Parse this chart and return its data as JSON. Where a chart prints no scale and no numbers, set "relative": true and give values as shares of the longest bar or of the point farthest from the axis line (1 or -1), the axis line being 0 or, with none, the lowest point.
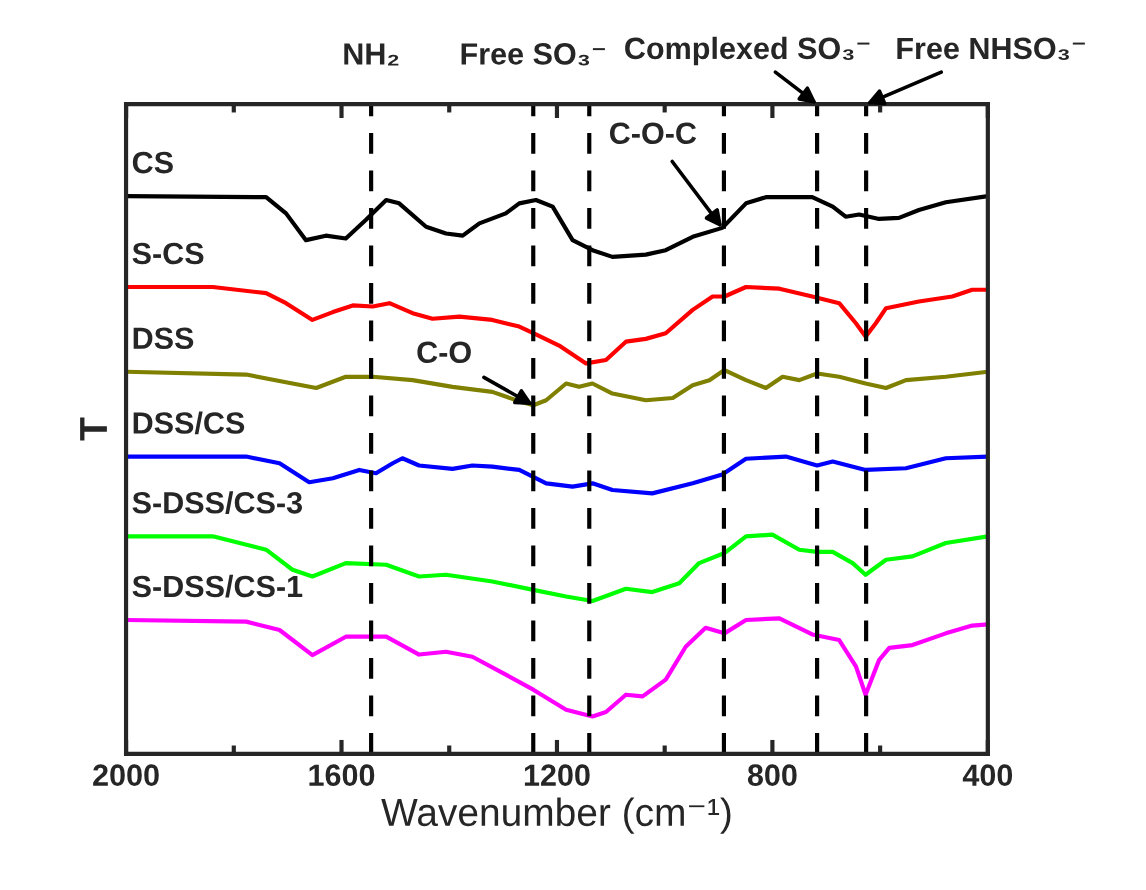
{
  "chart_data": {
    "type": "line",
    "relative": true,
    "xlabel": "Wavenumber (cm⁻¹)",
    "ylabel": "T",
    "xlim": [
      2000,
      400
    ],
    "xticks": [
      2000,
      1600,
      1200,
      800,
      400
    ],
    "grid": false,
    "line_style": "solid",
    "marker": "none",
    "series": [
      {
        "name": "CS",
        "color": "#000000",
        "x": [
          2000,
          1740,
          1703,
          1666,
          1629,
          1592,
          1555,
          1517,
          1493,
          1443,
          1406,
          1375,
          1344,
          1295,
          1270,
          1239,
          1208,
          1171,
          1134,
          1097,
          1035,
          998,
          948,
          893,
          849,
          812,
          726,
          688,
          664,
          639,
          602,
          565,
          528,
          478,
          400
        ],
        "values": [
          1.0,
          0.998,
          0.969,
          0.921,
          0.929,
          0.924,
          0.957,
          0.993,
          0.987,
          0.945,
          0.933,
          0.929,
          0.951,
          0.969,
          0.987,
          0.993,
          0.981,
          0.921,
          0.903,
          0.891,
          0.895,
          0.903,
          0.927,
          0.943,
          0.987,
          0.998,
          0.998,
          0.981,
          0.963,
          0.967,
          0.959,
          0.961,
          0.975,
          0.989,
          1.0
        ]
      },
      {
        "name": "S-CS",
        "color": "#ff0000",
        "x": [
          2000,
          1839,
          1740,
          1703,
          1654,
          1616,
          1579,
          1542,
          1511,
          1468,
          1431,
          1381,
          1320,
          1270,
          1239,
          1196,
          1146,
          1109,
          1072,
          1035,
          998,
          948,
          911,
          889,
          849,
          787,
          726,
          676,
          645,
          627,
          608,
          589,
          528,
          466,
          429,
          400
        ],
        "values": [
          0.837,
          0.837,
          0.826,
          0.808,
          0.778,
          0.792,
          0.804,
          0.802,
          0.808,
          0.79,
          0.78,
          0.784,
          0.778,
          0.766,
          0.752,
          0.732,
          0.7,
          0.706,
          0.739,
          0.744,
          0.754,
          0.796,
          0.82,
          0.82,
          0.837,
          0.834,
          0.82,
          0.808,
          0.772,
          0.748,
          0.772,
          0.799,
          0.811,
          0.82,
          0.832,
          0.832
        ]
      },
      {
        "name": "DSS",
        "color": "#808000",
        "x": [
          2000,
          1777,
          1691,
          1647,
          1592,
          1542,
          1468,
          1394,
          1320,
          1270,
          1244,
          1220,
          1183,
          1159,
          1134,
          1097,
          1035,
          985,
          948,
          917,
          889,
          849,
          812,
          781,
          750,
          717,
          676,
          627,
          589,
          552,
          478,
          400
        ],
        "values": [
          0.685,
          0.68,
          0.664,
          0.656,
          0.676,
          0.676,
          0.67,
          0.658,
          0.649,
          0.632,
          0.625,
          0.634,
          0.664,
          0.658,
          0.664,
          0.646,
          0.634,
          0.638,
          0.661,
          0.67,
          0.688,
          0.67,
          0.656,
          0.676,
          0.67,
          0.682,
          0.676,
          0.664,
          0.656,
          0.67,
          0.676,
          0.685
        ]
      },
      {
        "name": "DSS/CS",
        "color": "#0000ff",
        "x": [
          2000,
          1777,
          1715,
          1660,
          1616,
          1567,
          1536,
          1505,
          1487,
          1456,
          1394,
          1357,
          1320,
          1270,
          1220,
          1171,
          1134,
          1097,
          1023,
          948,
          893,
          849,
          775,
          717,
          688,
          627,
          552,
          478,
          400
        ],
        "values": [
          0.533,
          0.533,
          0.521,
          0.487,
          0.494,
          0.509,
          0.503,
          0.521,
          0.53,
          0.517,
          0.511,
          0.517,
          0.515,
          0.509,
          0.485,
          0.479,
          0.485,
          0.473,
          0.467,
          0.485,
          0.501,
          0.529,
          0.533,
          0.517,
          0.524,
          0.509,
          0.512,
          0.53,
          0.533
        ]
      },
      {
        "name": "S-DSS/CS-3",
        "color": "#00ff00",
        "x": [
          2000,
          1839,
          1740,
          1691,
          1654,
          1592,
          1517,
          1456,
          1406,
          1320,
          1244,
          1183,
          1134,
          1072,
          1023,
          973,
          936,
          889,
          849,
          800,
          750,
          717,
          688,
          651,
          627,
          589,
          540,
          478,
          400
        ],
        "values": [
          0.39,
          0.39,
          0.366,
          0.33,
          0.318,
          0.342,
          0.339,
          0.318,
          0.321,
          0.309,
          0.294,
          0.282,
          0.274,
          0.296,
          0.29,
          0.306,
          0.342,
          0.36,
          0.39,
          0.393,
          0.366,
          0.362,
          0.362,
          0.342,
          0.321,
          0.348,
          0.354,
          0.378,
          0.39
        ]
      },
      {
        "name": "S-DSS/CS-1",
        "color": "#ff00ff",
        "x": [
          2000,
          1777,
          1715,
          1654,
          1592,
          1517,
          1456,
          1406,
          1357,
          1295,
          1244,
          1183,
          1134,
          1109,
          1072,
          1041,
          998,
          961,
          924,
          889,
          849,
          787,
          726,
          676,
          645,
          627,
          602,
          583,
          540,
          478,
          429,
          400
        ],
        "values": [
          0.24,
          0.237,
          0.222,
          0.177,
          0.21,
          0.21,
          0.178,
          0.183,
          0.174,
          0.142,
          0.115,
          0.079,
          0.067,
          0.075,
          0.106,
          0.103,
          0.133,
          0.192,
          0.226,
          0.216,
          0.24,
          0.243,
          0.214,
          0.204,
          0.157,
          0.106,
          0.168,
          0.19,
          0.195,
          0.216,
          0.23,
          0.232
        ]
      }
    ],
    "ref_lines": [
      {
        "axis": "x",
        "value": 1545,
        "label": "NH₂",
        "color": "#000000",
        "line_style": "dashed"
      },
      {
        "axis": "x",
        "value": 1244,
        "label": "Free SO₃⁻",
        "color": "#000000",
        "line_style": "dashed"
      },
      {
        "axis": "x",
        "value": 1140,
        "label": null,
        "color": "#000000",
        "line_style": "dashed"
      },
      {
        "axis": "x",
        "value": 890,
        "label": null,
        "color": "#000000",
        "line_style": "dashed"
      },
      {
        "axis": "x",
        "value": 717,
        "label": "Complexed SO₃⁻",
        "color": "#000000",
        "line_style": "dashed"
      },
      {
        "axis": "x",
        "value": 626,
        "label": "Free NHSO₃⁻",
        "color": "#000000",
        "line_style": "dashed"
      }
    ],
    "annotations": [
      {
        "text": "C-O-C",
        "x": 893,
        "y": 0.943
      },
      {
        "text": "C-O",
        "x": 1244,
        "y": 0.625
      }
    ]
  }
}
